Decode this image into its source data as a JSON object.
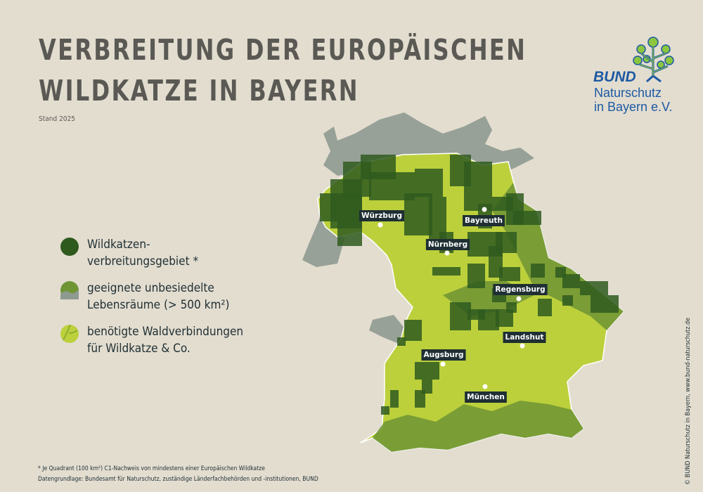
{
  "title": {
    "line1": "VERBREITUNG DER EUROPÄISCHEN",
    "line2": "WILDKATZE IN BAYERN"
  },
  "subtitle": "Stand 2025",
  "logo": {
    "brand": "BUND",
    "line1": "Naturschutz",
    "line2": "in Bayern e.V.",
    "color": "#1c5aa3",
    "icon": "linden-tree-logo"
  },
  "legend": [
    {
      "line1": "Wildkatzen-",
      "line2": "verbreitungsgebiet *",
      "color": "#2f5a1e"
    },
    {
      "line1": "geeignete unbesiedelte",
      "line2": "Lebensräume (> 500 km²)",
      "color": "#6f9434"
    },
    {
      "line1": "benötigte Waldverbindungen",
      "line2": "für Wildkatze & Co.",
      "color": "#bcd03c"
    }
  ],
  "cities": [
    "Würzburg",
    "Bayreuth",
    "Nürnberg",
    "Regensburg",
    "Landshut",
    "Augsburg",
    "München"
  ],
  "colors": {
    "background": "#e3ddd0",
    "outside": "#8e9a90",
    "label_bg": "#1f2f33"
  },
  "footnote": {
    "line1": "* Je Quadrant (100 km²) C1-Nachweis von mindestens einer Europäischen Wildkatze",
    "line2": "Datengrundlage: Bundesamt für Naturschutz, zuständige Länderfachbehörden und -institutionen, BUND"
  },
  "copyright": "© BUND Naturschutz in Bayern, www.bund-naturschutz.de"
}
